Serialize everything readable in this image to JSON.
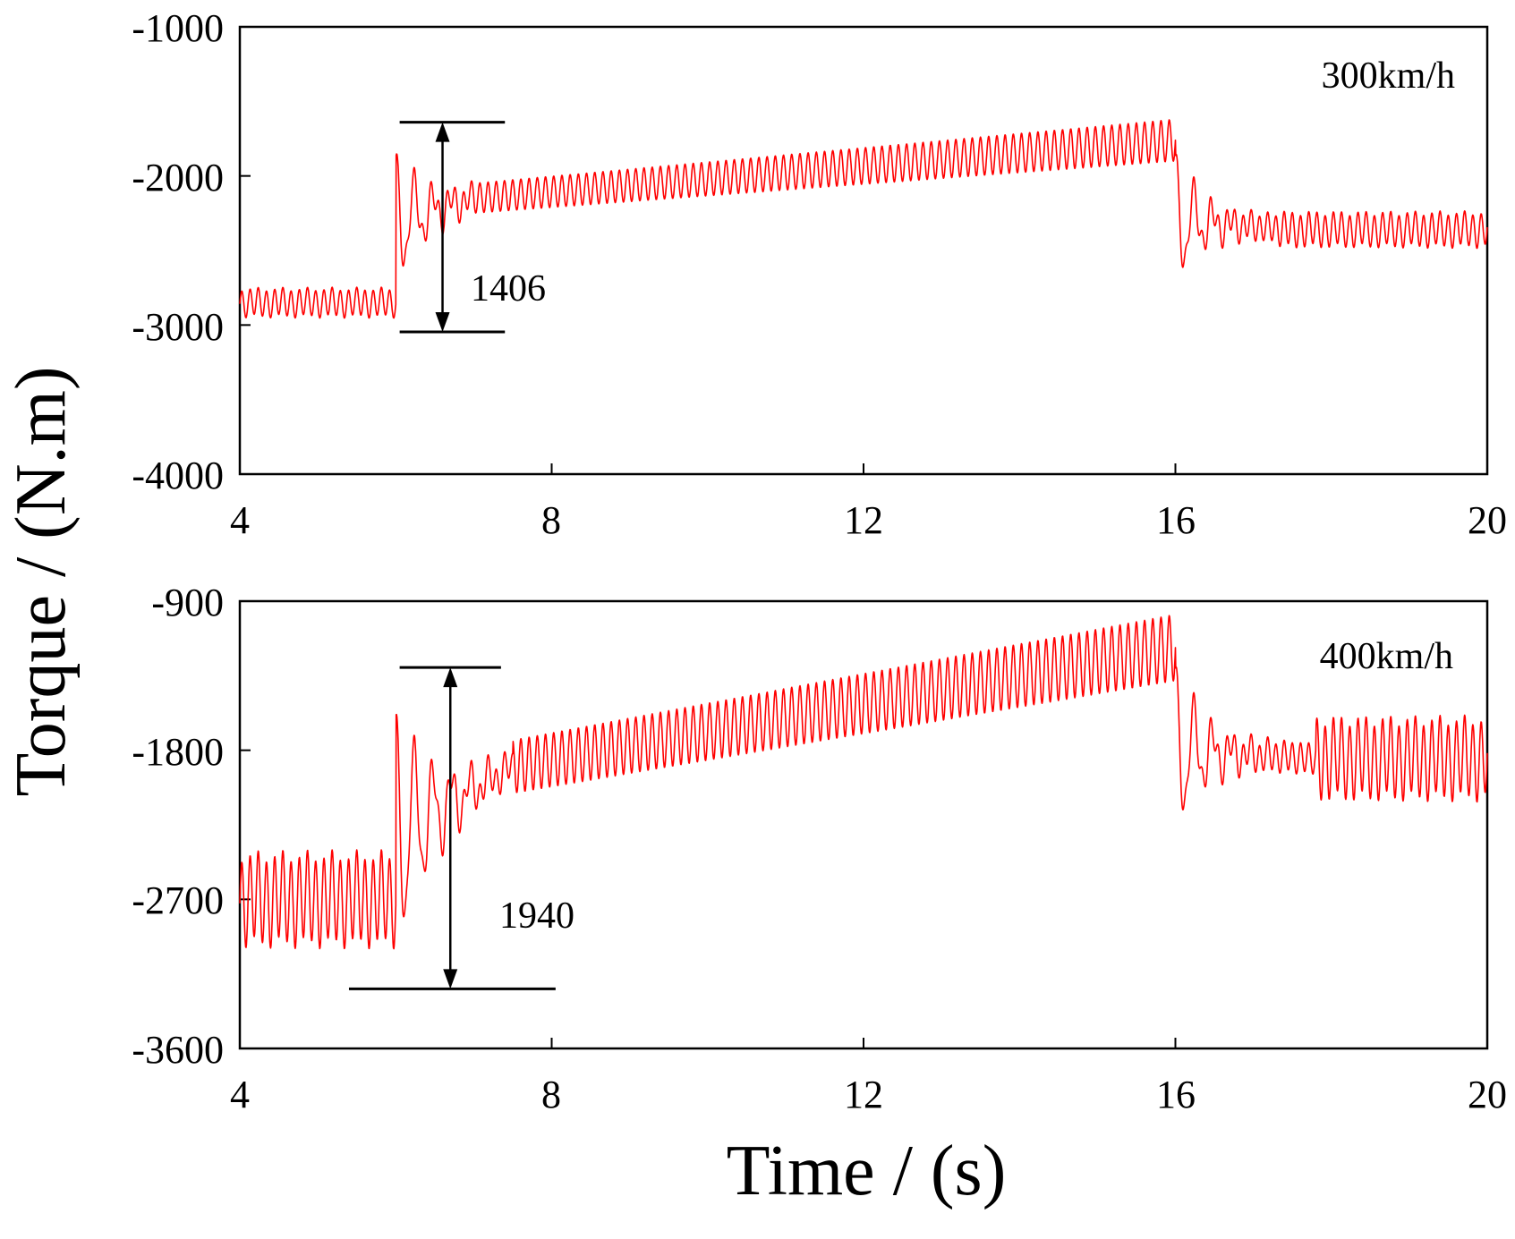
{
  "figure": {
    "ylabel": "Torque / (N.m)",
    "xlabel": "Time / (s)"
  },
  "colors": {
    "series": "#ff0000",
    "axes": "#000000",
    "background": "#ffffff"
  },
  "chart_data": [
    {
      "type": "line",
      "speed_label": "300km/h",
      "xlim": [
        4,
        20
      ],
      "ylim": [
        -4000,
        -1000
      ],
      "xticks": [
        4,
        8,
        12,
        16,
        20
      ],
      "xtick_labels": [
        "4",
        "8",
        "12",
        "16",
        "20"
      ],
      "yticks": [
        -1000,
        -2000,
        -3000,
        -4000
      ],
      "ytick_labels": [
        "-1000",
        "-2000",
        "-3000",
        "-4000"
      ],
      "series": [
        {
          "name": "Torque 300km/h",
          "segments": [
            {
              "t0": 4.0,
              "t1": 6.0,
              "kind": "steady",
              "mean": -2850,
              "amp": 90
            },
            {
              "t0": 6.0,
              "t1": 7.0,
              "kind": "transient",
              "start": -2300,
              "end": -2150,
              "amp": 420,
              "decay": 1.4
            },
            {
              "t0": 7.0,
              "t1": 16.0,
              "kind": "ramp",
              "start": -2150,
              "end": -1760,
              "amp_start": 100,
              "amp_end": 140
            },
            {
              "t0": 16.0,
              "t1": 17.3,
              "kind": "transient",
              "start": -2300,
              "end": -2350,
              "amp": 420,
              "decay": 1.6
            },
            {
              "t0": 17.3,
              "t1": 20.0,
              "kind": "steady",
              "mean": -2360,
              "amp": 110
            }
          ]
        }
      ],
      "annotation": {
        "label": "1406",
        "y_top": -1640,
        "y_bottom": -3046,
        "x_arrow": 6.6,
        "x_bar_start": 6.05,
        "x_bar_end": 7.4
      }
    },
    {
      "type": "line",
      "speed_label": "400km/h",
      "xlim": [
        4,
        20
      ],
      "ylim": [
        -3600,
        -900
      ],
      "xticks": [
        4,
        8,
        12,
        16,
        20
      ],
      "xtick_labels": [
        "4",
        "8",
        "12",
        "16",
        "20"
      ],
      "yticks": [
        -900,
        -1800,
        -2700,
        -3600
      ],
      "ytick_labels": [
        "-900",
        "-1800",
        "-2700",
        "-3600"
      ],
      "series": [
        {
          "name": "Torque 400km/h",
          "segments": [
            {
              "t0": 4.0,
              "t1": 6.0,
              "kind": "steady",
              "mean": -2700,
              "amp": 260
            },
            {
              "t0": 6.0,
              "t1": 7.5,
              "kind": "transient",
              "start": -2300,
              "end": -1900,
              "amp": 700,
              "decay": 1.1
            },
            {
              "t0": 7.5,
              "t1": 16.0,
              "kind": "ramp",
              "start": -1900,
              "end": -1180,
              "amp_start": 160,
              "amp_end": 200
            },
            {
              "t0": 16.0,
              "t1": 17.8,
              "kind": "transient",
              "start": -1800,
              "end": -1850,
              "amp": 480,
              "decay": 1.4
            },
            {
              "t0": 17.8,
              "t1": 20.0,
              "kind": "steady",
              "mean": -1850,
              "amp": 230
            }
          ]
        }
      ],
      "annotation": {
        "label": "1940",
        "y_top": -1300,
        "y_bottom": -3240,
        "x_arrow": 6.7,
        "x_bar_top_start": 6.05,
        "x_bar_top_end": 7.35,
        "x_bar_bottom_start": 5.4,
        "x_bar_bottom_end": 8.05
      }
    }
  ]
}
